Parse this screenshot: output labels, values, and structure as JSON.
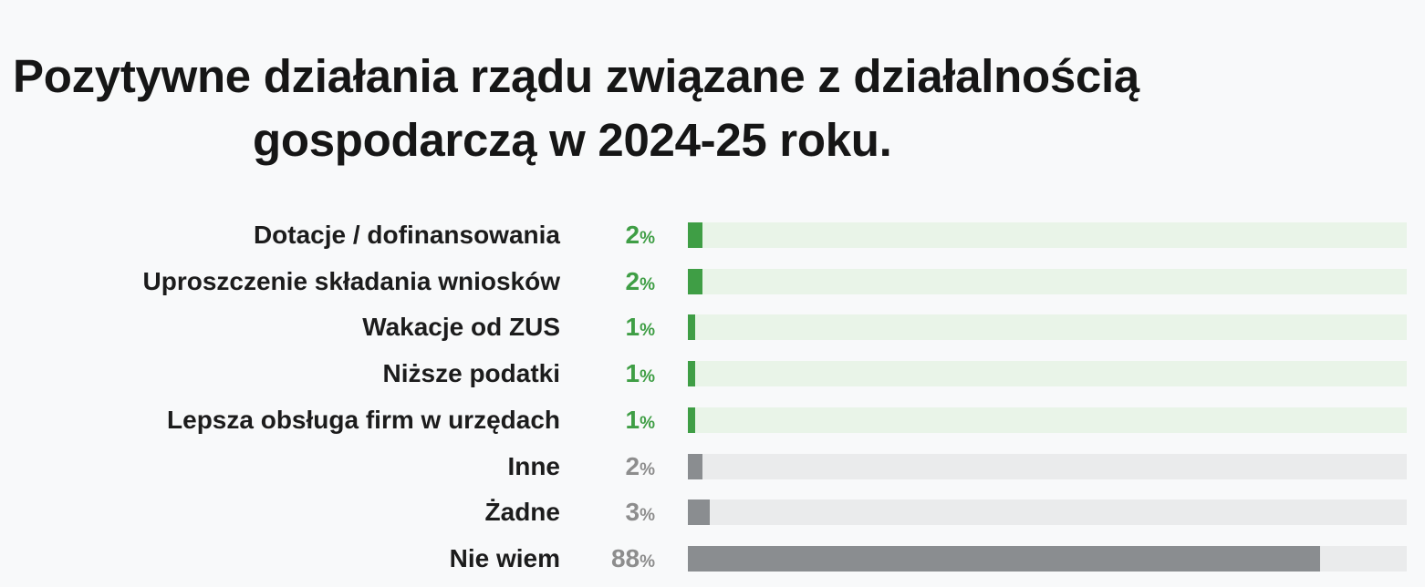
{
  "chart_data": {
    "type": "bar",
    "orientation": "horizontal",
    "title_lines": [
      "Pozytywne działania rządu związane z działalnością",
      "gospodarczą w 2024-25 roku."
    ],
    "categories": [
      "Dotacje / dofinansowania",
      "Uproszczenie składania wniosków",
      "Wakacje od ZUS",
      "Niższe podatki",
      "Lepsza obsługa firm w urzędach",
      "Inne",
      "Żadne",
      "Nie wiem"
    ],
    "values": [
      2,
      2,
      1,
      1,
      1,
      2,
      3,
      88
    ],
    "value_suffix": "%",
    "xlim": [
      0,
      100
    ],
    "groups": [
      "positive",
      "positive",
      "positive",
      "positive",
      "positive",
      "neutral",
      "neutral",
      "neutral"
    ],
    "colors": {
      "positive_bar": "#3f9e45",
      "positive_track": "#e9f4e8",
      "positive_text": "#3f9e45",
      "neutral_bar": "#8a8d90",
      "neutral_track": "#eaebec",
      "neutral_text": "#8d8d8d"
    },
    "grid": false,
    "legend": "none"
  }
}
